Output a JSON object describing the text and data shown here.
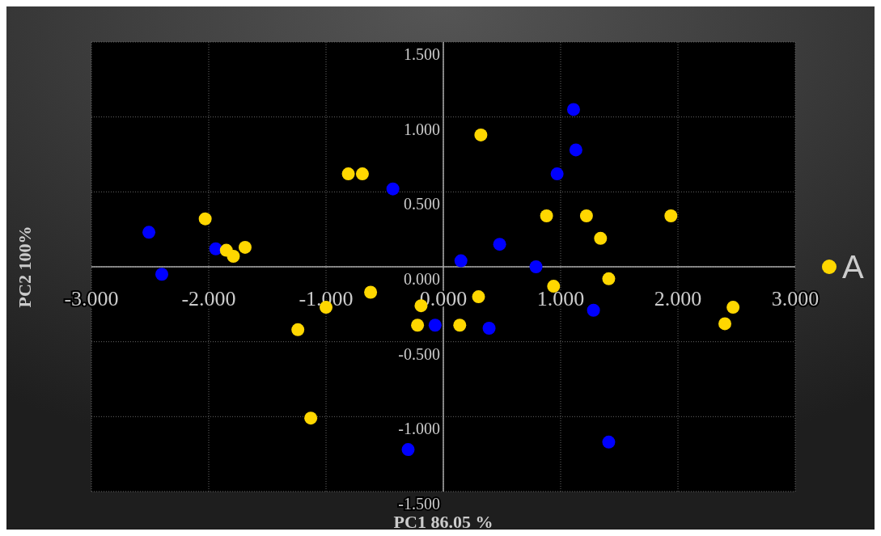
{
  "chart_data": {
    "type": "scatter",
    "xlabel": "PC1 86.05 %",
    "ylabel": "PC2 100%",
    "xlim": [
      -3,
      3
    ],
    "ylim": [
      -1.5,
      1.5
    ],
    "xticks": [
      {
        "value": -3,
        "label": "-3.000"
      },
      {
        "value": -2,
        "label": "-2.000"
      },
      {
        "value": -1,
        "label": "-1.000"
      },
      {
        "value": 0,
        "label": "0.000"
      },
      {
        "value": 1,
        "label": "1.000"
      },
      {
        "value": 2,
        "label": "2.000"
      },
      {
        "value": 3,
        "label": "3.000"
      }
    ],
    "yticks": [
      {
        "value": -1.5,
        "label": "-1.500"
      },
      {
        "value": -1,
        "label": "-1.000"
      },
      {
        "value": -0.5,
        "label": "-0.500"
      },
      {
        "value": 0,
        "label": "0.000"
      },
      {
        "value": 0.5,
        "label": "0.500"
      },
      {
        "value": 1,
        "label": "1.000"
      },
      {
        "value": 1.5,
        "label": "1.500"
      }
    ],
    "grid": true,
    "legend": "right",
    "marker": "circle",
    "series": [
      {
        "color": "#0000ff",
        "x": [
          -2.51,
          -2.4,
          -1.94,
          -0.43,
          0.15,
          0.48,
          0.79,
          0.97,
          1.11,
          1.13,
          1.28,
          0.39,
          -0.07,
          -0.3,
          1.41
        ],
        "values": [
          0.23,
          -0.05,
          0.12,
          0.52,
          0.04,
          0.15,
          0.0,
          0.62,
          1.05,
          0.78,
          -0.29,
          -0.41,
          -0.39,
          -1.22,
          -1.17
        ]
      },
      {
        "name": "A",
        "color": "#ffd700",
        "x": [
          -2.03,
          -1.85,
          -1.79,
          -1.69,
          -0.81,
          -0.69,
          -0.62,
          -1.0,
          -1.24,
          -1.13,
          -0.19,
          -0.22,
          0.14,
          0.32,
          0.3,
          0.88,
          1.22,
          1.34,
          1.94,
          0.94,
          1.41,
          2.4,
          2.47
        ],
        "values": [
          0.32,
          0.11,
          0.07,
          0.13,
          0.62,
          0.62,
          -0.17,
          -0.27,
          -0.42,
          -1.01,
          -0.26,
          -0.39,
          -0.39,
          0.88,
          -0.2,
          0.34,
          0.34,
          0.19,
          0.34,
          -0.13,
          -0.08,
          -0.38,
          -0.27
        ]
      }
    ]
  }
}
